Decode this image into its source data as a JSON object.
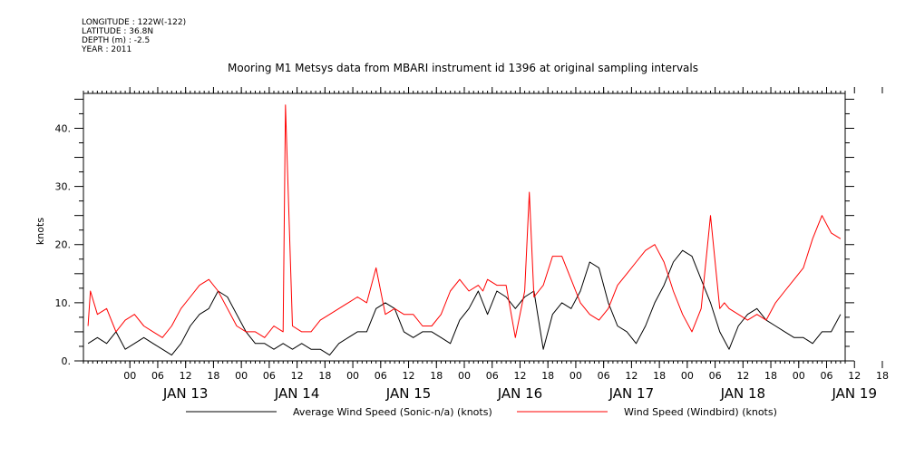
{
  "header": {
    "longitude": "LONGITUDE : 122W(-122)",
    "latitude": "LATITUDE : 36.8N",
    "depth": "DEPTH (m) : -2.5",
    "year": "YEAR : 2011"
  },
  "chart_data": {
    "type": "line",
    "title": "Mooring M1 Metsys data from MBARI instrument id 1396 at original sampling intervals",
    "ylabel": "knots",
    "xlabel": "",
    "ylim": [
      0,
      46
    ],
    "xlim_hours": [
      -10,
      154
    ],
    "yticks": [
      {
        "value": 0,
        "label": "0."
      },
      {
        "value": 10,
        "label": "10."
      },
      {
        "value": 20,
        "label": "20."
      },
      {
        "value": 30,
        "label": "30."
      },
      {
        "value": 40,
        "label": "40."
      }
    ],
    "hour_ticks": [
      "00",
      "06",
      "12",
      "18",
      "00",
      "06",
      "12",
      "18",
      "00",
      "06",
      "12",
      "18",
      "00",
      "06",
      "12",
      "18",
      "00",
      "06",
      "12",
      "18",
      "00",
      "06",
      "12",
      "18",
      "00",
      "06",
      "12",
      "18"
    ],
    "day_labels": [
      "JAN 13",
      "JAN 14",
      "JAN 15",
      "JAN 16",
      "JAN 17",
      "JAN 18",
      "JAN 19"
    ],
    "legend": [
      "Average Wind Speed (Sonic-n/a) (knots)",
      "Wind Speed (Windbird) (knots)"
    ],
    "series": [
      {
        "name": "Average Wind Speed (Sonic-n/a) (knots)",
        "color": "#000000",
        "x": [
          -9,
          -7,
          -5,
          -3,
          -1,
          1,
          3,
          5,
          7,
          9,
          11,
          13,
          15,
          17,
          19,
          21,
          23,
          25,
          27,
          29,
          31,
          33,
          35,
          37,
          39,
          41,
          43,
          45,
          47,
          49,
          51,
          53,
          55,
          57,
          59,
          61,
          63,
          65,
          67,
          69,
          71,
          73,
          75,
          77,
          79,
          81,
          83,
          85,
          87,
          89,
          91,
          93,
          95,
          97,
          99,
          101,
          103,
          105,
          107,
          109,
          111,
          113,
          115,
          117,
          119,
          121,
          123,
          125,
          127,
          129,
          131,
          133,
          135,
          137,
          139,
          141,
          143,
          145,
          147,
          149,
          151,
          153
        ],
        "values": [
          3,
          4,
          3,
          5,
          2,
          3,
          4,
          3,
          2,
          1,
          3,
          6,
          8,
          9,
          12,
          11,
          8,
          5,
          3,
          3,
          2,
          3,
          2,
          3,
          2,
          2,
          1,
          3,
          4,
          5,
          5,
          9,
          10,
          9,
          5,
          4,
          5,
          5,
          4,
          3,
          7,
          9,
          12,
          8,
          12,
          11,
          9,
          11,
          12,
          2,
          8,
          10,
          9,
          12,
          17,
          16,
          10,
          6,
          5,
          3,
          6,
          10,
          13,
          17,
          19,
          18,
          14,
          10,
          5,
          2,
          6,
          8,
          9,
          7,
          6,
          5,
          4,
          4,
          3,
          5,
          5,
          8
        ]
      },
      {
        "name": "Wind Speed (Windbird) (knots)",
        "color": "#ff0000",
        "x": [
          -9,
          -8.5,
          -7,
          -5,
          -3,
          -1,
          1,
          3,
          5,
          7,
          9,
          11,
          13,
          15,
          17,
          19,
          21,
          23,
          25,
          27,
          29,
          31,
          33,
          33.5,
          35,
          37,
          39,
          41,
          43,
          45,
          47,
          49,
          51,
          53,
          55,
          57,
          59,
          61,
          63,
          65,
          67,
          69,
          71,
          73,
          75,
          76,
          77,
          79,
          81,
          83,
          85,
          86,
          87,
          89,
          91,
          93,
          95,
          97,
          99,
          101,
          103,
          105,
          107,
          109,
          111,
          113,
          115,
          117,
          119,
          121,
          123,
          125,
          127,
          128,
          129,
          131,
          133,
          135,
          137,
          139,
          141,
          143,
          145,
          147,
          149,
          151,
          153
        ],
        "values": [
          6,
          12,
          8,
          9,
          5,
          7,
          8,
          6,
          5,
          4,
          6,
          9,
          11,
          13,
          14,
          12,
          9,
          6,
          5,
          5,
          4,
          6,
          5,
          44,
          6,
          5,
          5,
          7,
          8,
          9,
          10,
          11,
          10,
          16,
          8,
          9,
          8,
          8,
          6,
          6,
          8,
          12,
          14,
          12,
          13,
          12,
          14,
          13,
          13,
          4,
          12,
          29,
          11,
          13,
          18,
          18,
          14,
          10,
          8,
          7,
          9,
          13,
          15,
          17,
          19,
          20,
          17,
          12,
          8,
          5,
          9,
          25,
          9,
          10,
          9,
          8,
          7,
          8,
          7,
          10,
          12,
          14,
          16,
          21,
          25,
          22,
          21
        ]
      }
    ]
  }
}
